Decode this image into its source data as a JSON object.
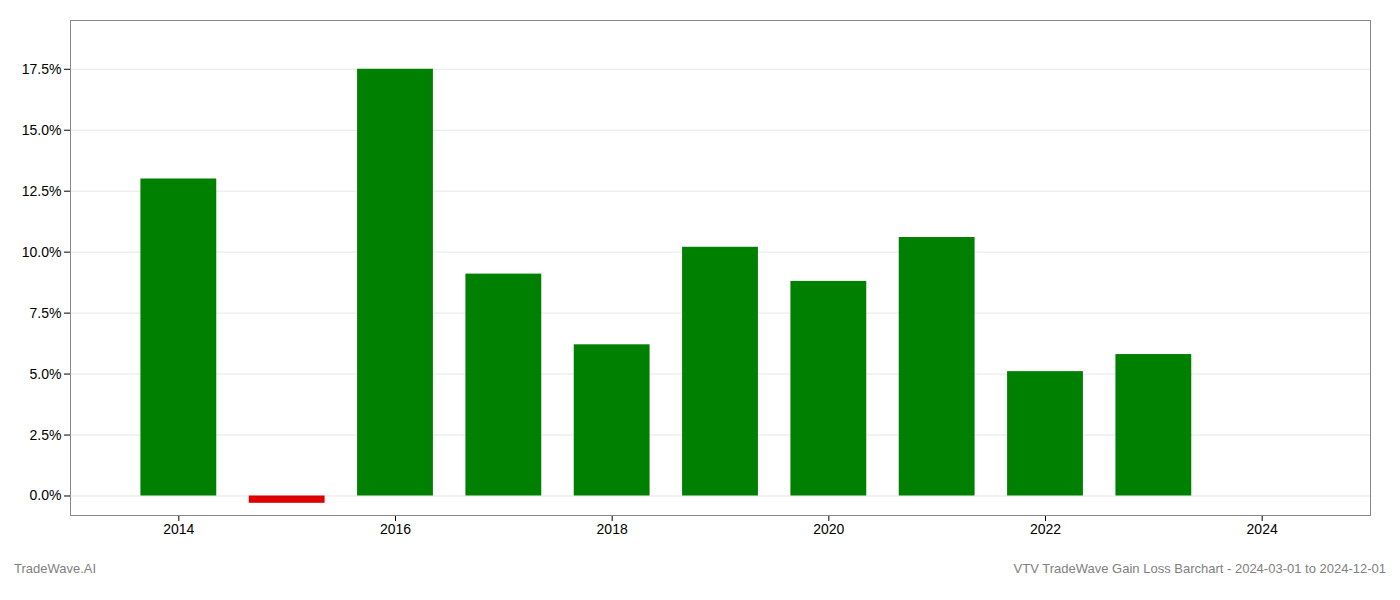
{
  "chart_data": {
    "type": "bar",
    "title": "VTV TradeWave Gain Loss Barchart - 2024-03-01 to 2024-12-01",
    "annotations": [
      "TradeWave.AI"
    ],
    "x": [
      2014,
      2015,
      2016,
      2017,
      2018,
      2019,
      2020,
      2021,
      2022,
      2023
    ],
    "values": [
      0.13,
      -0.003,
      0.175,
      0.091,
      0.062,
      0.102,
      0.088,
      0.106,
      0.051,
      0.058
    ],
    "colors": [
      "#008000",
      "#dd0000",
      "#008000",
      "#008000",
      "#008000",
      "#008000",
      "#008000",
      "#008000",
      "#008000",
      "#008000"
    ],
    "xlim": [
      2013.0,
      2025.0
    ],
    "xticks": [
      2014,
      2016,
      2018,
      2020,
      2022,
      2024
    ],
    "ylim": [
      -0.008,
      0.195
    ],
    "yticks": [
      {
        "value": 0.0,
        "label": "0.0%"
      },
      {
        "value": 0.025,
        "label": "2.5%"
      },
      {
        "value": 0.05,
        "label": "5.0%"
      },
      {
        "value": 0.075,
        "label": "7.5%"
      },
      {
        "value": 0.1,
        "label": "10.0%"
      },
      {
        "value": 0.125,
        "label": "12.5%"
      },
      {
        "value": 0.15,
        "label": "15.0%"
      },
      {
        "value": 0.175,
        "label": "17.5%"
      }
    ],
    "grid": true
  }
}
